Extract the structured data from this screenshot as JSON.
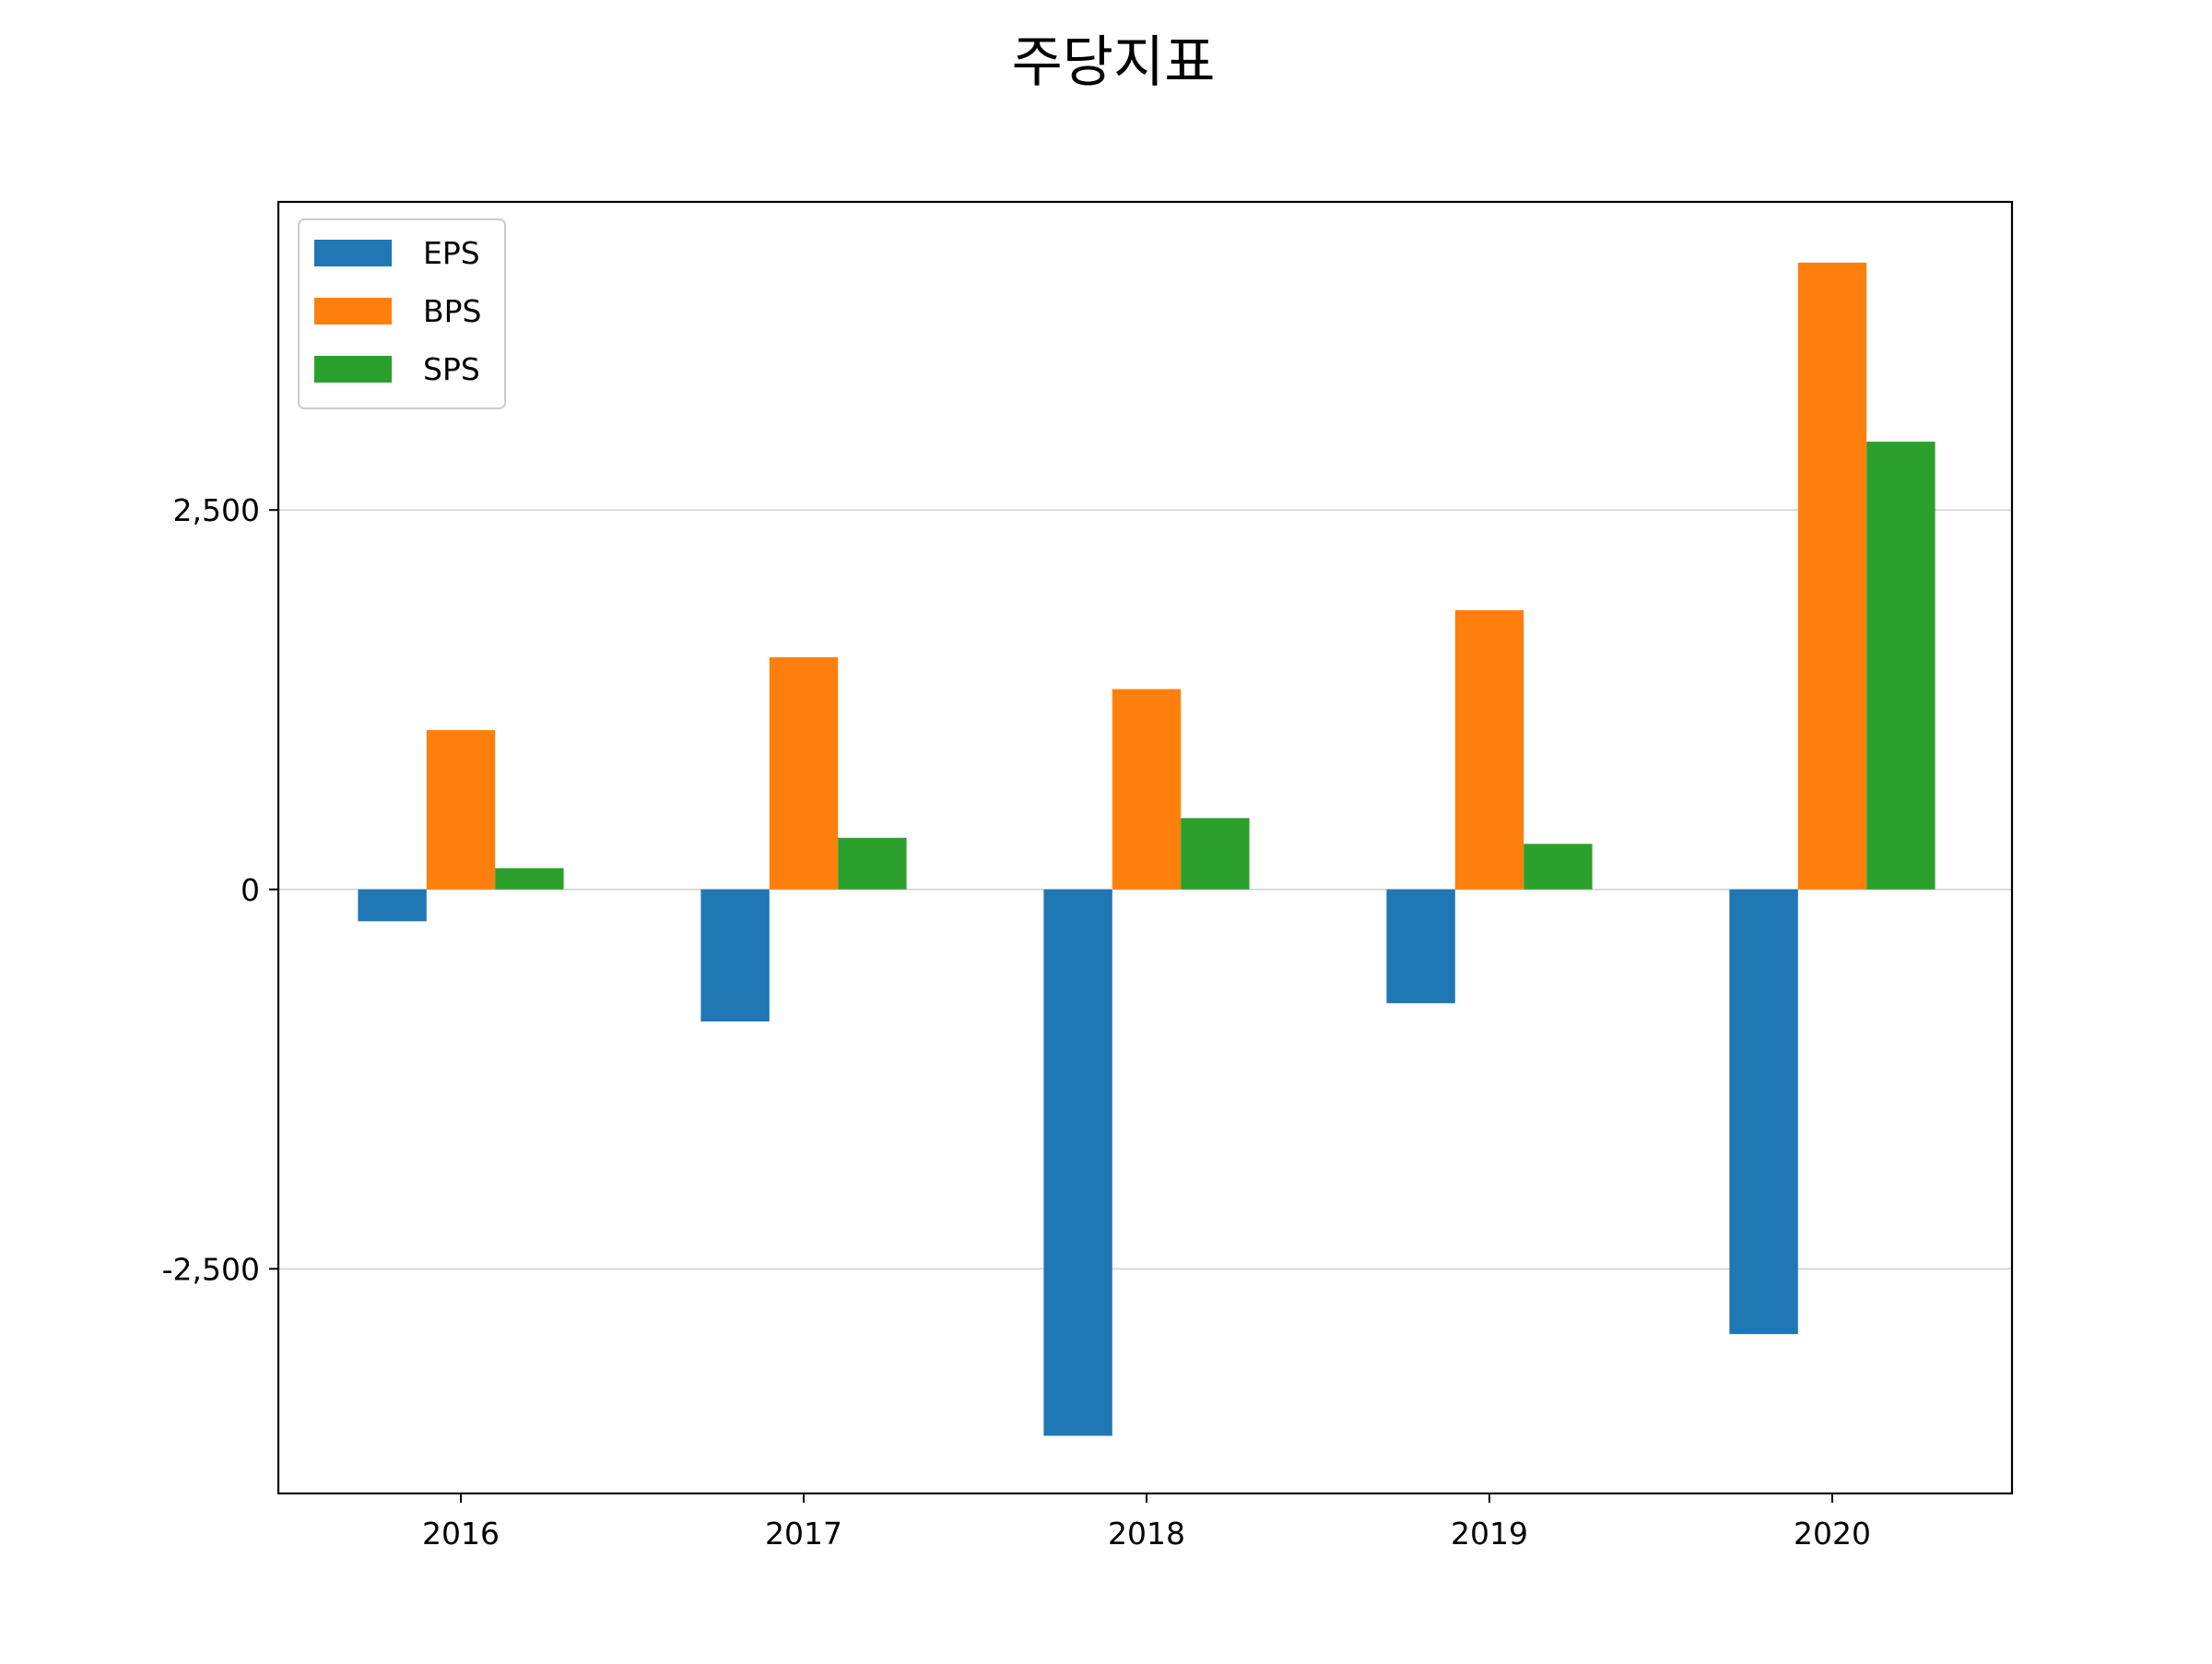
{
  "chart_data": {
    "type": "bar",
    "title": "주당지표",
    "xlabel": "",
    "ylabel": "",
    "categories": [
      "2016",
      "2017",
      "2018",
      "2019",
      "2020"
    ],
    "series": [
      {
        "name": "EPS",
        "color": "#1f77b4",
        "values": [
          -210,
          -870,
          -3600,
          -750,
          -2930
        ]
      },
      {
        "name": "BPS",
        "color": "#ff7f0e",
        "values": [
          1050,
          1530,
          1320,
          1840,
          4130
        ]
      },
      {
        "name": "SPS",
        "color": "#2ca02c",
        "values": [
          140,
          340,
          470,
          300,
          2950
        ]
      }
    ],
    "ylim": [
      -3980,
      4530
    ],
    "yticks": [
      -2500,
      0,
      2500
    ],
    "ytick_labels": [
      "-2,500",
      "0",
      "2,500"
    ],
    "grid": true,
    "legend": "top-left"
  }
}
